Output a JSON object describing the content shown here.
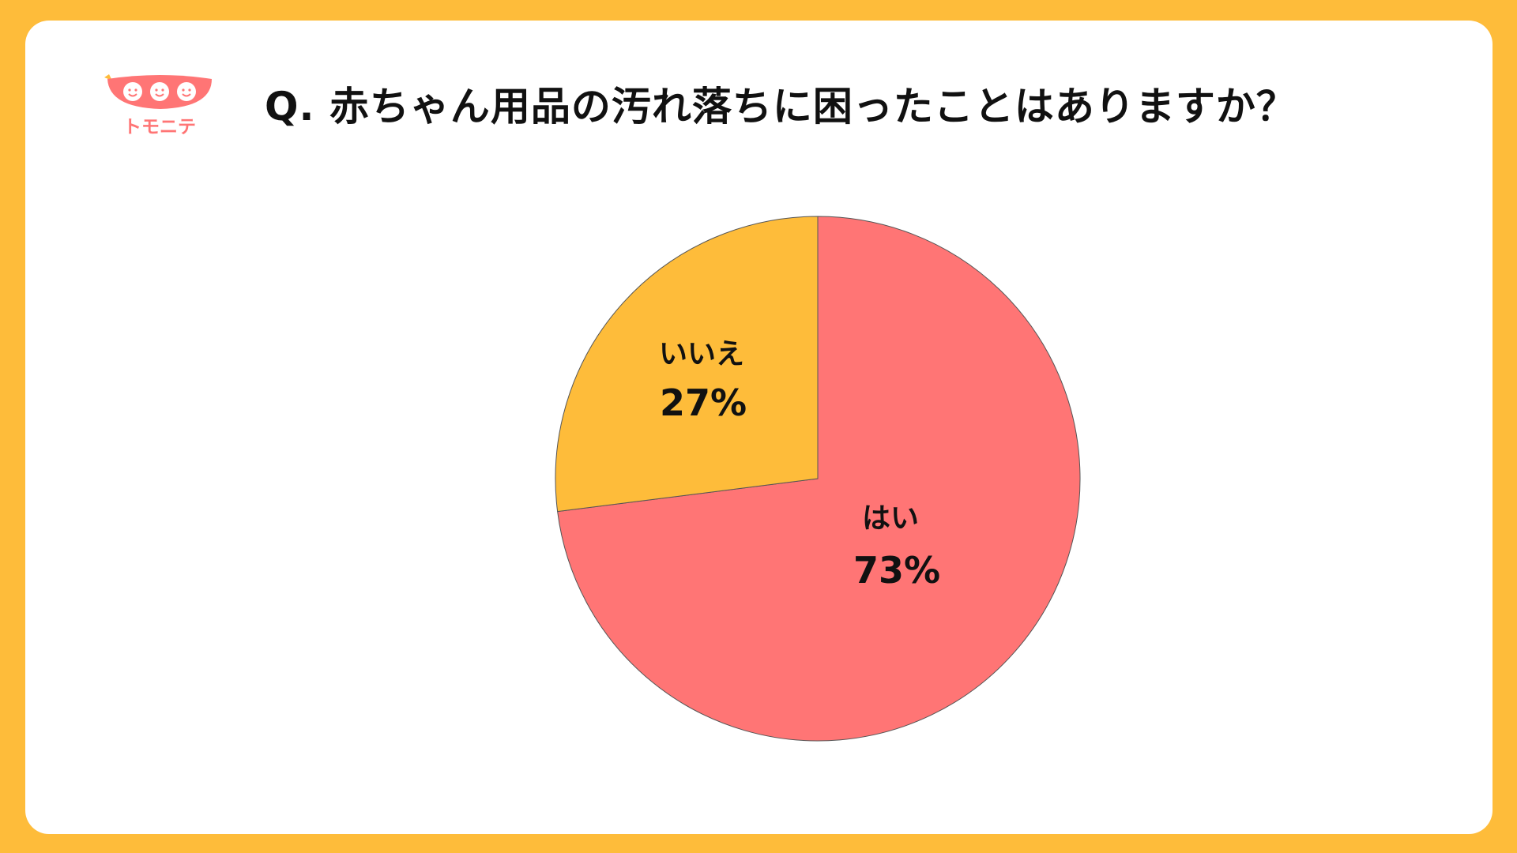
{
  "brand": {
    "name": "トモニテ"
  },
  "title": "Q. 赤ちゃん用品の汚れ落ちに困ったことはありますか？",
  "colors": {
    "background": "#FEBC3A",
    "yes": "#FF7575",
    "no": "#FEBC3A"
  },
  "chart_data": {
    "type": "pie",
    "title": "Q. 赤ちゃん用品の汚れ落ちに困ったことはありますか？",
    "start": "12 o'clock",
    "direction": "clockwise",
    "slices": [
      {
        "label": "はい",
        "value": 73,
        "value_label": "73%",
        "color": "#FF7575"
      },
      {
        "label": "いいえ",
        "value": 27,
        "value_label": "27%",
        "color": "#FEBC3A"
      }
    ]
  }
}
